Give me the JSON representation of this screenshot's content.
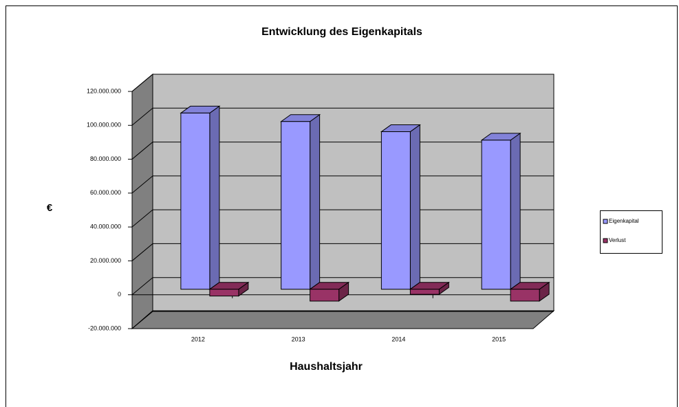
{
  "chart_data": {
    "type": "bar3d",
    "title": "Entwicklung des Eigenkapitals",
    "x_label": "Haushaltsjahr",
    "y_label": "€",
    "categories": [
      "2012",
      "2013",
      "2014",
      "2015"
    ],
    "series": [
      {
        "name": "Eigenkapital",
        "color": "#9999ff",
        "values": [
          104000000,
          99000000,
          93000000,
          88000000
        ]
      },
      {
        "name": "Verlust",
        "color": "#993366",
        "values": [
          -4000000,
          -7000000,
          -3000000,
          -7000000
        ]
      }
    ],
    "ylim": [
      -20000000,
      120000000
    ],
    "yticks": [
      {
        "value": -20000000,
        "label": "-20.000.000"
      },
      0,
      {
        "value": 20000000,
        "label": "20.000.000"
      },
      {
        "value": 40000000,
        "label": "40.000.000"
      },
      {
        "value": 60000000,
        "label": "60.000.000"
      },
      {
        "value": 80000000,
        "label": "80.000.000"
      },
      {
        "value": 100000000,
        "label": "100.000.000"
      },
      {
        "value": 120000000,
        "label": "120.000.000"
      }
    ],
    "grid": true,
    "legend": "right"
  }
}
